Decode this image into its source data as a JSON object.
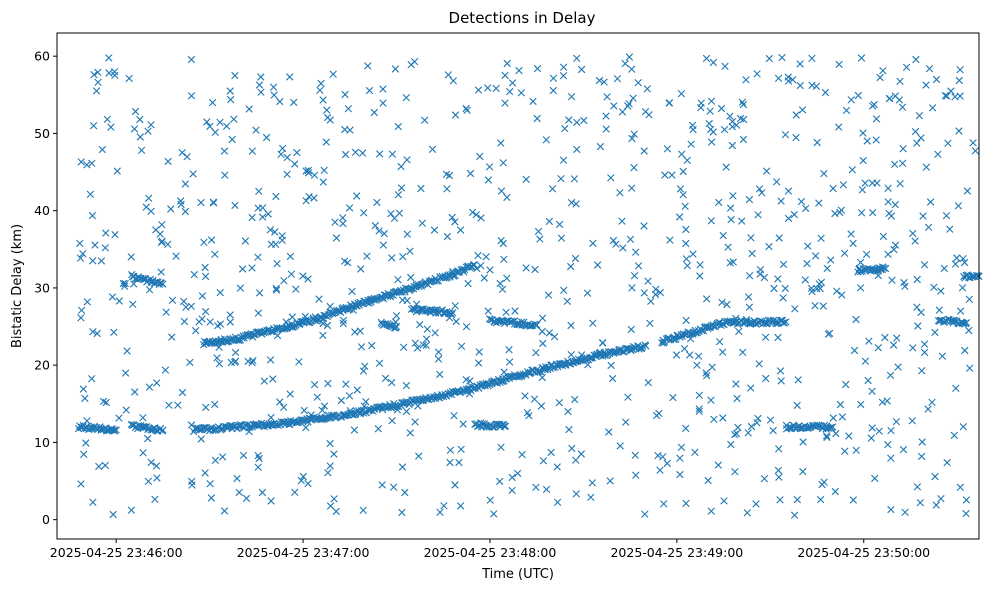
{
  "chart_data": {
    "type": "scatter",
    "title": "Detections in Delay",
    "xlabel": "Time (UTC)",
    "ylabel": "Bistatic Delay (km)",
    "x_axis_kind": "time",
    "x_ticks": [
      {
        "t": "2025-04-25T23:46:00",
        "label": "2025-04-25 23:46:00"
      },
      {
        "t": "2025-04-25T23:47:00",
        "label": "2025-04-25 23:47:00"
      },
      {
        "t": "2025-04-25T23:48:00",
        "label": "2025-04-25 23:48:00"
      },
      {
        "t": "2025-04-25T23:49:00",
        "label": "2025-04-25 23:49:00"
      },
      {
        "t": "2025-04-25T23:50:00",
        "label": "2025-04-25 23:50:00"
      }
    ],
    "xlim": [
      "2025-04-25T23:45:41",
      "2025-04-25T23:50:37"
    ],
    "ylim": [
      -2.5,
      63
    ],
    "y_ticks": [
      0,
      10,
      20,
      30,
      40,
      50,
      60
    ],
    "grid": false,
    "marker": "x",
    "color": "#1f77b4",
    "tracks": [
      {
        "points": [
          [
            "2025-04-25T23:45:48",
            12.0
          ],
          [
            "2025-04-25T23:46:00",
            11.6
          ]
        ]
      },
      {
        "points": [
          [
            "2025-04-25T23:46:05",
            12.1
          ],
          [
            "2025-04-25T23:46:15",
            11.6
          ]
        ]
      },
      {
        "points": [
          [
            "2025-04-25T23:46:25",
            11.6
          ],
          [
            "2025-04-25T23:46:55",
            12.5
          ],
          [
            "2025-04-25T23:47:20",
            14.0
          ],
          [
            "2025-04-25T23:47:50",
            16.5
          ],
          [
            "2025-04-25T23:48:10",
            18.8
          ],
          [
            "2025-04-25T23:48:35",
            21.3
          ],
          [
            "2025-04-25T23:48:50",
            22.5
          ]
        ]
      },
      {
        "points": [
          [
            "2025-04-25T23:46:05",
            31.5
          ],
          [
            "2025-04-25T23:46:15",
            30.5
          ]
        ]
      },
      {
        "points": [
          [
            "2025-04-25T23:46:28",
            22.8
          ],
          [
            "2025-04-25T23:46:40",
            23.5
          ],
          [
            "2025-04-25T23:46:55",
            25.0
          ],
          [
            "2025-04-25T23:47:05",
            26.0
          ],
          [
            "2025-04-25T23:47:15",
            27.5
          ],
          [
            "2025-04-25T23:47:35",
            30.0
          ],
          [
            "2025-04-25T23:47:50",
            32.0
          ],
          [
            "2025-04-25T23:47:55",
            33.0
          ]
        ]
      },
      {
        "points": [
          [
            "2025-04-25T23:47:25",
            25.5
          ],
          [
            "2025-04-25T23:47:30",
            25.0
          ]
        ]
      },
      {
        "points": [
          [
            "2025-04-25T23:47:35",
            27.2
          ],
          [
            "2025-04-25T23:47:48",
            26.8
          ]
        ]
      },
      {
        "points": [
          [
            "2025-04-25T23:47:55",
            12.3
          ],
          [
            "2025-04-25T23:48:05",
            12.1
          ]
        ]
      },
      {
        "points": [
          [
            "2025-04-25T23:48:00",
            25.8
          ],
          [
            "2025-04-25T23:48:15",
            25.2
          ]
        ]
      },
      {
        "points": [
          [
            "2025-04-25T23:48:55",
            23.0
          ],
          [
            "2025-04-25T23:49:05",
            24.2
          ],
          [
            "2025-04-25T23:49:15",
            25.5
          ],
          [
            "2025-04-25T23:49:35",
            25.6
          ]
        ]
      },
      {
        "points": [
          [
            "2025-04-25T23:49:35",
            12.0
          ],
          [
            "2025-04-25T23:49:50",
            12.0
          ]
        ]
      },
      {
        "points": [
          [
            "2025-04-25T23:49:58",
            32.3
          ],
          [
            "2025-04-25T23:50:07",
            32.5
          ]
        ]
      },
      {
        "points": [
          [
            "2025-04-25T23:50:24",
            25.8
          ],
          [
            "2025-04-25T23:50:33",
            25.5
          ]
        ]
      },
      {
        "points": [
          [
            "2025-04-25T23:50:32",
            31.5
          ],
          [
            "2025-04-25T23:50:37",
            31.5
          ]
        ]
      }
    ],
    "clutter": {
      "count": 980,
      "time_range": [
        "2025-04-25T23:45:48",
        "2025-04-25T23:50:37"
      ],
      "delay_range": [
        0.5,
        60
      ]
    }
  }
}
